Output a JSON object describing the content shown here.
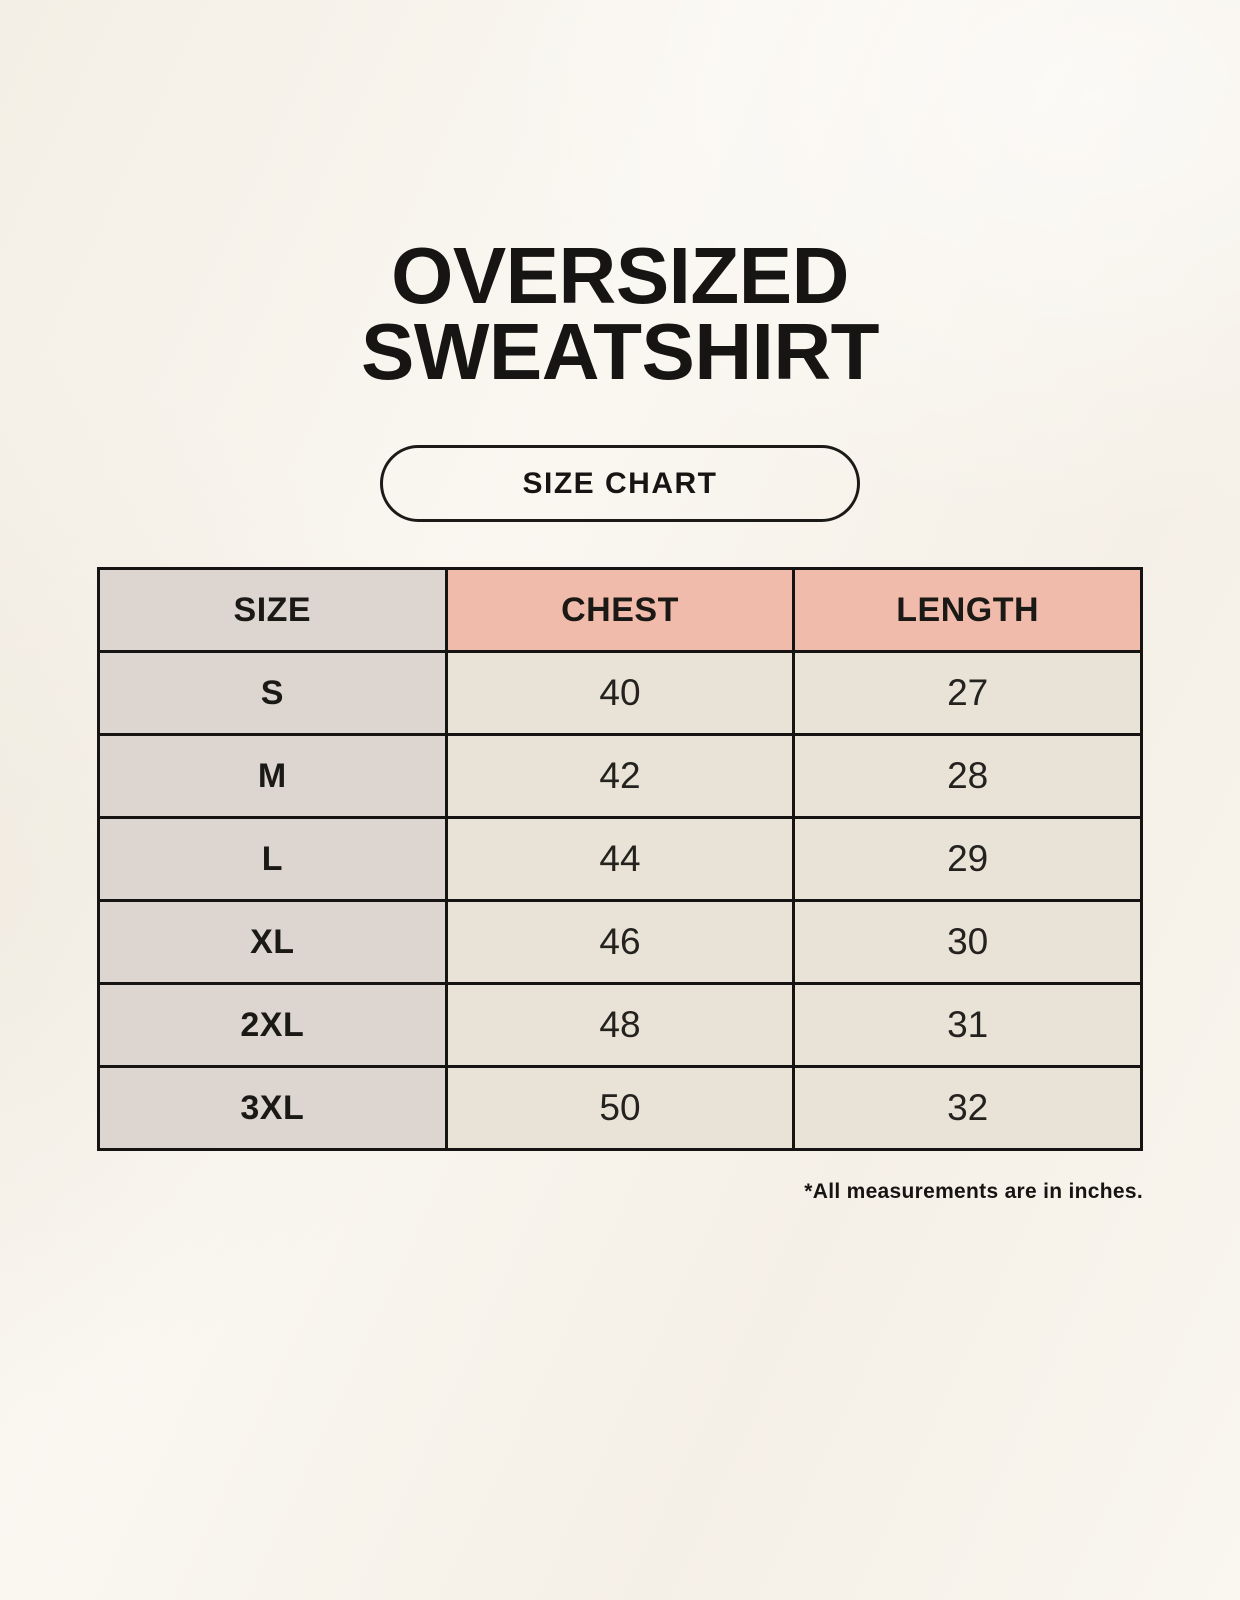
{
  "title": {
    "line1": "OVERSIZED",
    "line2": "SWEATSHIRT"
  },
  "size_chart_button": {
    "label": "SIZE CHART"
  },
  "chart_data": {
    "type": "table",
    "title": "OVERSIZED SWEATSHIRT",
    "subtitle": "SIZE CHART",
    "columns": [
      "SIZE",
      "CHEST",
      "LENGTH"
    ],
    "rows": [
      [
        "S",
        "40",
        "27"
      ],
      [
        "M",
        "42",
        "28"
      ],
      [
        "L",
        "44",
        "29"
      ],
      [
        "XL",
        "46",
        "30"
      ],
      [
        "2XL",
        "48",
        "31"
      ],
      [
        "3XL",
        "50",
        "32"
      ]
    ],
    "units": "inches",
    "note": "*All measurements are in inches."
  },
  "footnote": {
    "text": "*All measurements are in inches."
  },
  "colors": {
    "page_background": "#f8f4ec",
    "accent_header": "#f0bbaa",
    "size_column": "#ddd6d0",
    "data_cell": "#e9e2d6",
    "border": "#161412",
    "text": "#171513"
  }
}
